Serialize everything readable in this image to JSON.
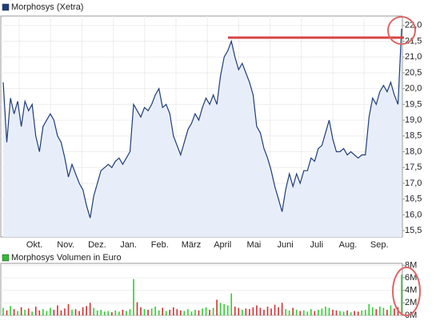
{
  "chart_data": [
    {
      "type": "line",
      "title": "Morphosys (Xetra)",
      "color": "#1f3d7a",
      "area_color": "#e8eef9",
      "legend_color": "#1f3d7a",
      "month_labels": [
        "Okt.",
        "Nov.",
        "Dez.",
        "Jan.",
        "Feb.",
        "März",
        "April",
        "Mai",
        "Juni",
        "Juli",
        "Aug.",
        "Sep."
      ],
      "values": [
        20.2,
        18.3,
        19.7,
        19.2,
        19.6,
        18.8,
        19.6,
        19.3,
        19.5,
        18.5,
        18.0,
        18.8,
        19.0,
        19.2,
        19.0,
        18.5,
        18.3,
        17.8,
        17.2,
        17.6,
        17.3,
        17.0,
        16.8,
        16.3,
        15.9,
        16.6,
        17.0,
        17.4,
        17.5,
        17.6,
        17.5,
        17.7,
        17.8,
        17.6,
        17.8,
        18.0,
        19.5,
        19.3,
        19.1,
        19.4,
        19.3,
        19.5,
        19.8,
        20.0,
        19.4,
        19.5,
        19.2,
        18.5,
        18.2,
        17.9,
        18.3,
        18.7,
        18.9,
        19.2,
        19.0,
        19.4,
        19.7,
        19.5,
        19.8,
        19.5,
        20.4,
        21.0,
        21.2,
        21.5,
        21.0,
        20.6,
        20.8,
        20.5,
        20.2,
        19.8,
        18.8,
        18.6,
        18.1,
        17.8,
        17.4,
        16.9,
        16.5,
        16.1,
        16.8,
        17.3,
        16.9,
        17.3,
        17.0,
        17.4,
        17.4,
        17.8,
        17.7,
        18.1,
        18.2,
        18.6,
        19.0,
        18.4,
        18.0,
        18.0,
        18.1,
        17.9,
        18.0,
        17.9,
        17.8,
        17.9,
        17.9,
        19.1,
        19.7,
        19.5,
        19.9,
        20.1,
        19.9,
        20.2,
        19.8,
        19.5,
        21.9
      ],
      "ylim": [
        15.3,
        22.3
      ],
      "yticks": [
        {
          "value": 15.5,
          "label": "15,5"
        },
        {
          "value": 16,
          "label": "16,0"
        },
        {
          "value": 16.5,
          "label": "16,5"
        },
        {
          "value": 17,
          "label": "17,0"
        },
        {
          "value": 17.5,
          "label": "17,5"
        },
        {
          "value": 18,
          "label": "18,0"
        },
        {
          "value": 18.5,
          "label": "18,5"
        },
        {
          "value": 19,
          "label": "19,0"
        },
        {
          "value": 19.5,
          "label": "19,5"
        },
        {
          "value": 20,
          "label": "20,0"
        },
        {
          "value": 20.5,
          "label": "20,5"
        },
        {
          "value": 21,
          "label": "21,0"
        },
        {
          "value": 21.5,
          "label": "21,5"
        },
        {
          "value": 22,
          "label": "22,0"
        }
      ],
      "grid": true
    },
    {
      "type": "bar",
      "title": "Morphosys Volumen in Euro",
      "legend_color": "#33bb33",
      "up_color": "#33cc33",
      "down_color": "#cc3333",
      "values": [
        1.2,
        0.8,
        1.5,
        1.0,
        0.7,
        1.3,
        0.9,
        1.1,
        0.6,
        1.4,
        0.8,
        1.0,
        0.7,
        1.2,
        0.9,
        1.6,
        0.8,
        1.1,
        1.8,
        0.9,
        1.0,
        0.7,
        1.3,
        1.5,
        2.0,
        1.2,
        0.8,
        0.9,
        0.6,
        0.7,
        0.5,
        0.8,
        0.6,
        0.9,
        0.7,
        1.0,
        5.8,
        2.1,
        1.3,
        1.0,
        0.9,
        1.1,
        1.4,
        0.8,
        1.2,
        0.7,
        0.9,
        1.3,
        1.0,
        0.8,
        0.7,
        1.0,
        0.6,
        0.9,
        0.8,
        1.1,
        1.3,
        0.9,
        1.2,
        2.5,
        2.0,
        1.8,
        1.6,
        3.5,
        1.4,
        1.2,
        0.9,
        1.1,
        1.0,
        1.3,
        1.6,
        1.2,
        0.9,
        1.4,
        1.1,
        1.7,
        1.3,
        2.0,
        1.0,
        0.8,
        1.2,
        0.9,
        0.7,
        0.8,
        0.6,
        1.0,
        0.7,
        0.9,
        1.1,
        1.4,
        1.2,
        0.9,
        0.8,
        0.7,
        0.6,
        0.8,
        0.5,
        0.7,
        0.6,
        0.8,
        0.9,
        1.8,
        1.3,
        1.0,
        1.4,
        1.2,
        0.9,
        1.6,
        1.1,
        1.3,
        6.5
      ],
      "ylim": [
        0,
        8.3
      ],
      "yticks": [
        {
          "value": 0,
          "label": "0M"
        },
        {
          "value": 2,
          "label": "2M"
        },
        {
          "value": 4,
          "label": "4M"
        },
        {
          "value": 6,
          "label": "6M"
        },
        {
          "value": 8,
          "label": "8M"
        }
      ],
      "grid": true
    }
  ]
}
